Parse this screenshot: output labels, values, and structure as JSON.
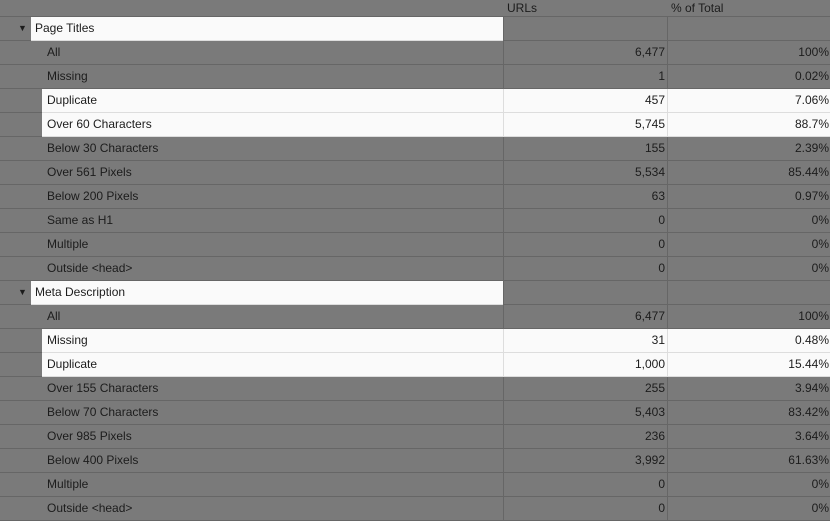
{
  "columns": {
    "urls": "URLs",
    "pct": "% of Total"
  },
  "sections": [
    {
      "title": "Page Titles",
      "rows": [
        {
          "label": "All",
          "urls": "6,477",
          "pct": "100%",
          "highlight": false
        },
        {
          "label": "Missing",
          "urls": "1",
          "pct": "0.02%",
          "highlight": false
        },
        {
          "label": "Duplicate",
          "urls": "457",
          "pct": "7.06%",
          "highlight": true
        },
        {
          "label": "Over 60 Characters",
          "urls": "5,745",
          "pct": "88.7%",
          "highlight": true
        },
        {
          "label": "Below 30 Characters",
          "urls": "155",
          "pct": "2.39%",
          "highlight": false
        },
        {
          "label": "Over 561 Pixels",
          "urls": "5,534",
          "pct": "85.44%",
          "highlight": false
        },
        {
          "label": "Below 200 Pixels",
          "urls": "63",
          "pct": "0.97%",
          "highlight": false
        },
        {
          "label": "Same as H1",
          "urls": "0",
          "pct": "0%",
          "highlight": false
        },
        {
          "label": "Multiple",
          "urls": "0",
          "pct": "0%",
          "highlight": false
        },
        {
          "label": "Outside <head>",
          "urls": "0",
          "pct": "0%",
          "highlight": false
        }
      ]
    },
    {
      "title": "Meta Description",
      "rows": [
        {
          "label": "All",
          "urls": "6,477",
          "pct": "100%",
          "highlight": false
        },
        {
          "label": "Missing",
          "urls": "31",
          "pct": "0.48%",
          "highlight": true
        },
        {
          "label": "Duplicate",
          "urls": "1,000",
          "pct": "15.44%",
          "highlight": true
        },
        {
          "label": "Over 155 Characters",
          "urls": "255",
          "pct": "3.94%",
          "highlight": false
        },
        {
          "label": "Below 70 Characters",
          "urls": "5,403",
          "pct": "83.42%",
          "highlight": false
        },
        {
          "label": "Over 985 Pixels",
          "urls": "236",
          "pct": "3.64%",
          "highlight": false
        },
        {
          "label": "Below 400 Pixels",
          "urls": "3,992",
          "pct": "61.63%",
          "highlight": false
        },
        {
          "label": "Multiple",
          "urls": "0",
          "pct": "0%",
          "highlight": false
        },
        {
          "label": "Outside <head>",
          "urls": "0",
          "pct": "0%",
          "highlight": false
        }
      ]
    }
  ]
}
